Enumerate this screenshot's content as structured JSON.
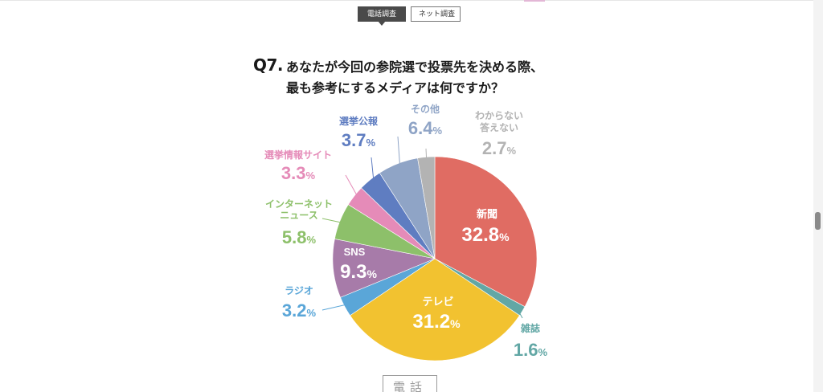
{
  "tabs": [
    {
      "label": "電話調査",
      "active": true
    },
    {
      "label": "ネット調査",
      "active": false
    }
  ],
  "question": {
    "number": "Q7.",
    "line1": "あなたが今回の参院選で投票先を決める際、",
    "line2": "最も参考にするメディアは何ですか？"
  },
  "bottom_label": "電話",
  "chart_data": {
    "type": "pie",
    "start": "12 o'clock",
    "direction": "clockwise",
    "unit": "%",
    "slices": [
      {
        "label": "新聞",
        "value": 32.8,
        "color": "#e06c63"
      },
      {
        "label": "雑誌",
        "value": 1.6,
        "color": "#62a7a5"
      },
      {
        "label": "テレビ",
        "value": 31.2,
        "color": "#f2c230"
      },
      {
        "label": "ラジオ",
        "value": 3.2,
        "color": "#5aa6d8"
      },
      {
        "label": "SNS",
        "value": 9.3,
        "color": "#a77ba9"
      },
      {
        "label": "インターネットニュース",
        "label_lines": [
          "インターネット",
          "ニュース"
        ],
        "value": 5.8,
        "color": "#8dc06a"
      },
      {
        "label": "選挙情報サイト",
        "value": 3.3,
        "color": "#e58bb8"
      },
      {
        "label": "選挙公報",
        "value": 3.7,
        "color": "#5f7dc1"
      },
      {
        "label": "その他",
        "value": 6.4,
        "color": "#8fa4c6"
      },
      {
        "label": "わからない答えない",
        "label_lines": [
          "わからない",
          "答えない"
        ],
        "value": 2.7,
        "color": "#b3b3b3"
      }
    ]
  }
}
